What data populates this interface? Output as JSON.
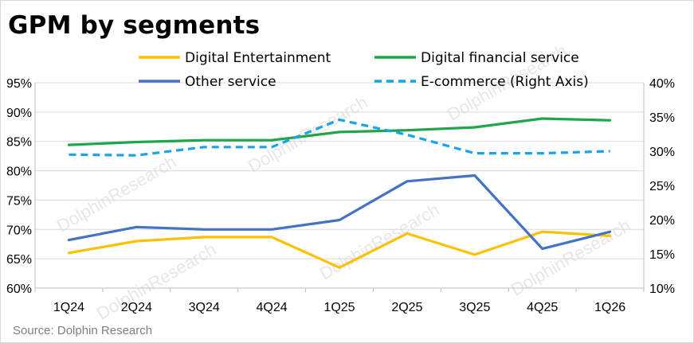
{
  "title": "GPM by segments",
  "source": "Source: Dolphin Research",
  "watermark": "DolphinResearch",
  "chart_data": {
    "type": "line",
    "title": "GPM by segments",
    "categories": [
      "1Q24",
      "2Q24",
      "3Q24",
      "4Q24",
      "1Q25",
      "2Q25",
      "3Q25",
      "4Q25",
      "1Q26"
    ],
    "left_axis": {
      "ylim": [
        60,
        95
      ],
      "ticks": [
        "60%",
        "65%",
        "70%",
        "75%",
        "80%",
        "85%",
        "90%",
        "95%"
      ]
    },
    "right_axis": {
      "ylim": [
        10,
        40
      ],
      "ticks": [
        "10%",
        "15%",
        "20%",
        "25%",
        "30%",
        "35%",
        "40%"
      ]
    },
    "legend_position": "top",
    "grid": "horizontal",
    "series": [
      {
        "name": "Digital Entertainment",
        "axis": "left",
        "color": "#ffc000",
        "dash": false,
        "values": [
          66.0,
          68.0,
          68.7,
          68.7,
          63.5,
          69.3,
          65.7,
          69.6,
          68.9
        ]
      },
      {
        "name": "Digital financial service",
        "axis": "left",
        "color": "#1fa64a",
        "dash": false,
        "values": [
          84.4,
          84.9,
          85.2,
          85.2,
          86.6,
          86.9,
          87.4,
          88.9,
          88.6
        ]
      },
      {
        "name": "Other service",
        "axis": "left",
        "color": "#4472c4",
        "dash": false,
        "values": [
          68.2,
          70.4,
          70.0,
          70.0,
          71.6,
          78.2,
          79.2,
          66.7,
          69.6
        ]
      },
      {
        "name": "E-commerce (Right Axis)",
        "axis": "right",
        "color": "#1aa3e8",
        "dash": true,
        "values": [
          29.5,
          29.4,
          30.6,
          30.6,
          34.6,
          32.4,
          29.7,
          29.7,
          30.0
        ]
      }
    ]
  }
}
